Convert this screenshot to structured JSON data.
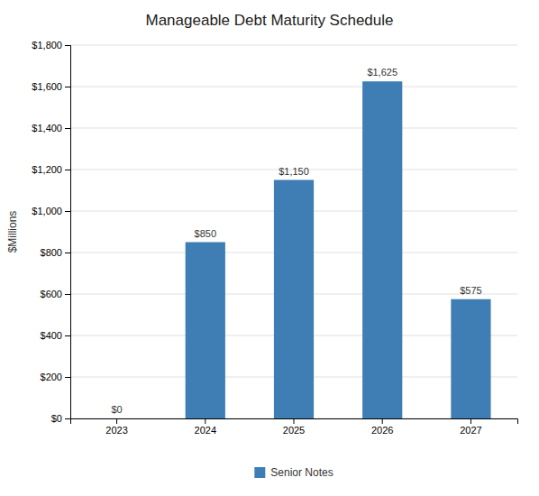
{
  "chart_data": {
    "type": "bar",
    "title": "Manageable Debt Maturity Schedule",
    "categories": [
      "2023",
      "2024",
      "2025",
      "2026",
      "2027"
    ],
    "series": [
      {
        "name": "Senior Notes",
        "color": "#3E7EB5",
        "values": [
          0,
          850,
          1150,
          1625,
          575
        ],
        "value_labels": [
          "$0",
          "$850",
          "$1,150",
          "$1,625",
          "$575"
        ]
      }
    ],
    "ylabel": "$Millions",
    "ylim": [
      0,
      1800
    ],
    "yticks": [
      {
        "value": 0,
        "label": "$0"
      },
      {
        "value": 200,
        "label": "$200"
      },
      {
        "value": 400,
        "label": "$400"
      },
      {
        "value": 600,
        "label": "$600"
      },
      {
        "value": 800,
        "label": "$800"
      },
      {
        "value": 1000,
        "label": "$1,000"
      },
      {
        "value": 1200,
        "label": "$1,200"
      },
      {
        "value": 1400,
        "label": "$1,400"
      },
      {
        "value": 1600,
        "label": "$1,600"
      },
      {
        "value": 1800,
        "label": "$1,800"
      }
    ],
    "grid": true,
    "data_labels": true,
    "legend": "bottom"
  }
}
